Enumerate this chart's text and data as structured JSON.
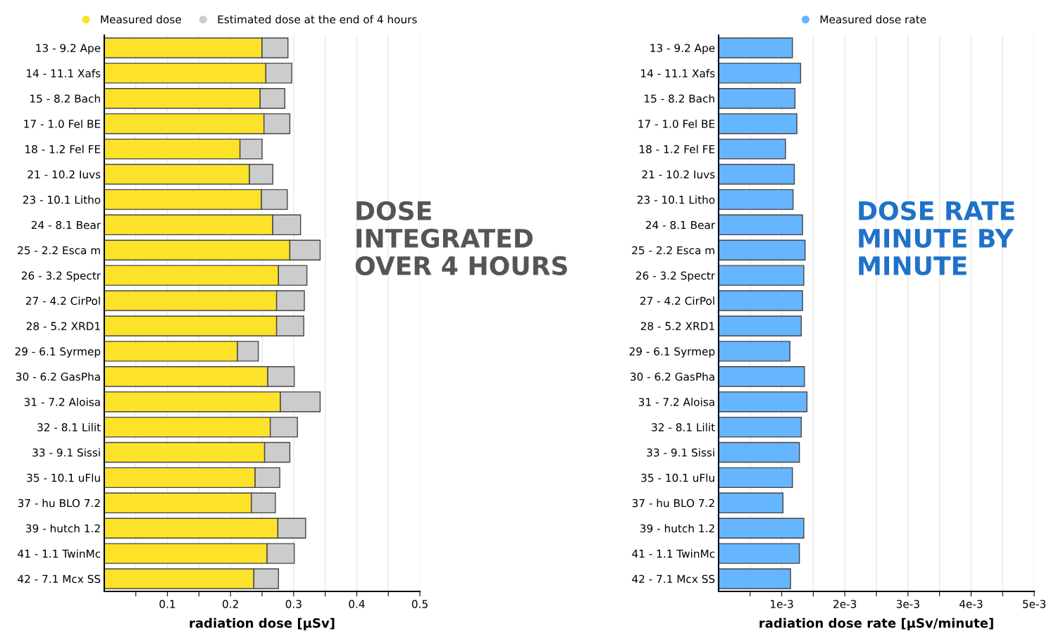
{
  "chart_data": [
    {
      "type": "bar",
      "orientation": "horizontal",
      "stacked": true,
      "xlabel": "radiation dose [µSv]",
      "categories": [
        "13 - 9.2 Ape",
        "14 - 11.1 Xafs",
        "15 - 8.2 Bach",
        "17 - 1.0 Fel BE",
        "18 - 1.2 Fel FE",
        "21 - 10.2 Iuvs",
        "23 - 10.1 Litho",
        "24 - 8.1 Bear",
        "25 - 2.2 Esca m",
        "26 - 3.2 Spectr",
        "27 - 4.2 CirPol",
        "28 - 5.2 XRD1",
        "29 - 6.1 Syrmep",
        "30 - 6.2 GasPha",
        "31 - 7.2 Aloisa",
        "32 - 8.1 Lilit",
        "33 - 9.1 Sissi",
        "35 - 10.1 uFlu",
        "37 - hu BLO 7.2",
        "39 - hutch 1.2",
        "41 - 1.1 TwinMc",
        "42 - 7.1 Mcx SS"
      ],
      "series": [
        {
          "name": "Measured dose",
          "color": "#fde22a",
          "values": [
            0.25,
            0.256,
            0.247,
            0.253,
            0.215,
            0.23,
            0.249,
            0.267,
            0.294,
            0.276,
            0.273,
            0.273,
            0.211,
            0.259,
            0.279,
            0.263,
            0.254,
            0.239,
            0.233,
            0.275,
            0.258,
            0.237
          ]
        },
        {
          "name": "Estimated dose at the end of 4 hours",
          "color": "#cccccc",
          "values": [
            0.041,
            0.041,
            0.039,
            0.041,
            0.035,
            0.037,
            0.041,
            0.044,
            0.048,
            0.045,
            0.044,
            0.043,
            0.033,
            0.042,
            0.063,
            0.043,
            0.04,
            0.039,
            0.038,
            0.044,
            0.043,
            0.039
          ]
        }
      ],
      "xlim": [
        0,
        0.5
      ],
      "xticks": [
        {
          "value": 0.05,
          "label": null
        },
        0.1,
        {
          "value": 0.15,
          "label": null
        },
        0.2,
        {
          "value": 0.25,
          "label": null
        },
        0.3,
        {
          "value": 0.35,
          "label": null
        },
        0.4,
        {
          "value": 0.45,
          "label": null
        },
        0.5
      ],
      "grid": "x",
      "legend": "top",
      "annotations": [
        "DOSE INTEGRATED OVER 4 HOURS"
      ]
    },
    {
      "type": "bar",
      "orientation": "horizontal",
      "xlabel": "radiation dose rate [µSv/minute]",
      "categories": [
        "13 - 9.2 Ape",
        "14 - 11.1 Xafs",
        "15 - 8.2 Bach",
        "17 - 1.0 Fel BE",
        "18 - 1.2 Fel FE",
        "21 - 10.2 Iuvs",
        "23 - 10.1 Litho",
        "24 - 8.1 Bear",
        "25 - 2.2 Esca m",
        "26 - 3.2 Spectr",
        "27 - 4.2 CirPol",
        "28 - 5.2 XRD1",
        "29 - 6.1 Syrmep",
        "30 - 6.2 GasPha",
        "31 - 7.2 Aloisa",
        "32 - 8.1 Lilit",
        "33 - 9.1 Sissi",
        "35 - 10.1 uFlu",
        "37 - hu BLO 7.2",
        "39 - hutch 1.2",
        "41 - 1.1 TwinMc",
        "42 - 7.1 Mcx SS"
      ],
      "series": [
        {
          "name": "Measured dose rate",
          "color": "#66b5ff",
          "values": [
            0.00117,
            0.0013,
            0.00121,
            0.00124,
            0.00106,
            0.0012,
            0.00118,
            0.00133,
            0.00137,
            0.00135,
            0.00133,
            0.00131,
            0.00113,
            0.00136,
            0.0014,
            0.00131,
            0.00128,
            0.00117,
            0.00102,
            0.00135,
            0.00128,
            0.00114
          ]
        }
      ],
      "xlim": [
        0,
        0.005
      ],
      "xticks": [
        {
          "value": 0.0005,
          "label": null
        },
        {
          "value": 0.001,
          "label": "1e-3"
        },
        {
          "value": 0.0015,
          "label": null
        },
        {
          "value": 0.002,
          "label": "2e-3"
        },
        {
          "value": 0.0025,
          "label": null
        },
        {
          "value": 0.003,
          "label": "3e-3"
        },
        {
          "value": 0.0035,
          "label": null
        },
        {
          "value": 0.004,
          "label": "4e-3"
        },
        {
          "value": 0.0045,
          "label": null
        },
        {
          "value": 0.005,
          "label": "5e-3"
        }
      ],
      "grid": "x",
      "legend": "top",
      "annotations": [
        "DOSE RATE MINUTE BY MINUTE"
      ]
    }
  ]
}
